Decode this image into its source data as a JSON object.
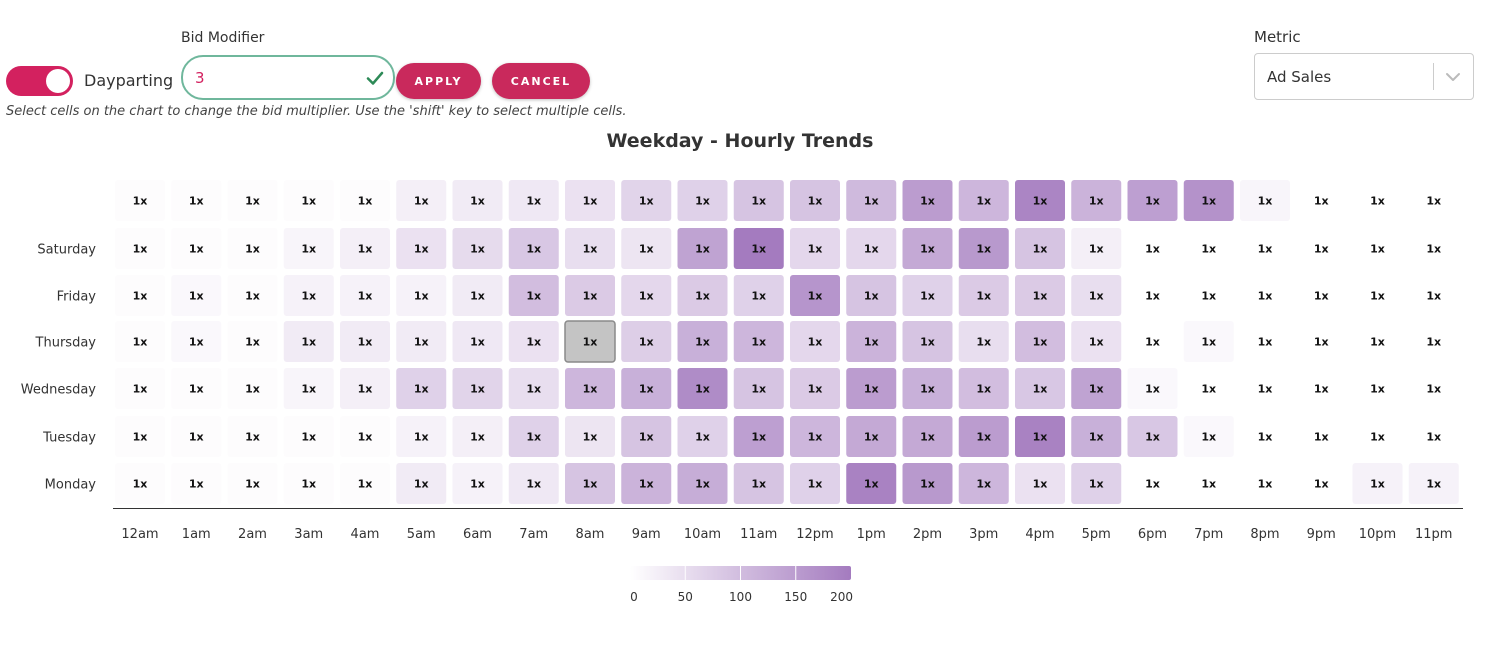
{
  "controls": {
    "dayparting_label": "Dayparting",
    "dayparting_on": true,
    "bid_modifier_label": "Bid Modifier",
    "bid_modifier_value": "3",
    "apply_label": "APPLY",
    "cancel_label": "CANCEL",
    "hint": "Select cells on the chart to change the bid multiplier. Use the 'shift' key to select multiple cells."
  },
  "metric": {
    "label": "Metric",
    "selected": "Ad Sales"
  },
  "colors": {
    "accent": "#d3215f",
    "button": "#c9295c",
    "valid_border": "#6fb79c",
    "heat_high": "#a47bbf",
    "selected_cell": "#c4c4c4"
  },
  "chart_data": {
    "type": "heatmap",
    "title": "Weekday - Hourly Trends",
    "x_categories": [
      "12am",
      "1am",
      "2am",
      "3am",
      "4am",
      "5am",
      "6am",
      "7am",
      "8am",
      "9am",
      "10am",
      "11am",
      "12pm",
      "1pm",
      "2pm",
      "3pm",
      "4pm",
      "5pm",
      "6pm",
      "7pm",
      "8pm",
      "9pm",
      "10pm",
      "11pm"
    ],
    "y_categories": [
      "",
      "Saturday",
      "Friday",
      "Thursday",
      "Wednesday",
      "Tuesday",
      "Monday"
    ],
    "cell_label": "1x",
    "selected_cell": {
      "row": "Thursday",
      "col": "8am"
    },
    "values": [
      [
        5,
        5,
        5,
        5,
        5,
        25,
        30,
        35,
        45,
        65,
        70,
        90,
        90,
        105,
        150,
        110,
        185,
        115,
        145,
        165,
        15,
        0,
        0,
        0
      ],
      [
        5,
        5,
        5,
        15,
        25,
        45,
        55,
        85,
        50,
        40,
        140,
        200,
        60,
        60,
        130,
        155,
        90,
        25,
        0,
        0,
        0,
        0,
        0,
        0
      ],
      [
        5,
        10,
        5,
        20,
        20,
        20,
        30,
        100,
        80,
        60,
        80,
        70,
        160,
        90,
        70,
        80,
        80,
        50,
        0,
        0,
        0,
        0,
        0,
        0
      ],
      [
        5,
        10,
        5,
        30,
        30,
        30,
        35,
        45,
        0,
        75,
        120,
        110,
        60,
        115,
        90,
        50,
        100,
        45,
        0,
        10,
        0,
        0,
        0,
        0
      ],
      [
        5,
        5,
        5,
        15,
        25,
        70,
        65,
        50,
        110,
        120,
        175,
        90,
        80,
        150,
        120,
        100,
        85,
        140,
        10,
        0,
        0,
        0,
        0,
        0
      ],
      [
        5,
        5,
        5,
        5,
        5,
        20,
        25,
        70,
        40,
        90,
        70,
        145,
        110,
        130,
        130,
        150,
        190,
        120,
        85,
        10,
        0,
        0,
        0,
        0
      ],
      [
        5,
        5,
        5,
        5,
        5,
        30,
        20,
        35,
        90,
        115,
        125,
        90,
        70,
        190,
        155,
        110,
        45,
        70,
        0,
        0,
        0,
        0,
        20,
        20
      ]
    ],
    "legend": {
      "ticks": [
        0,
        50,
        100,
        150,
        200
      ],
      "range": [
        0,
        200
      ]
    }
  }
}
